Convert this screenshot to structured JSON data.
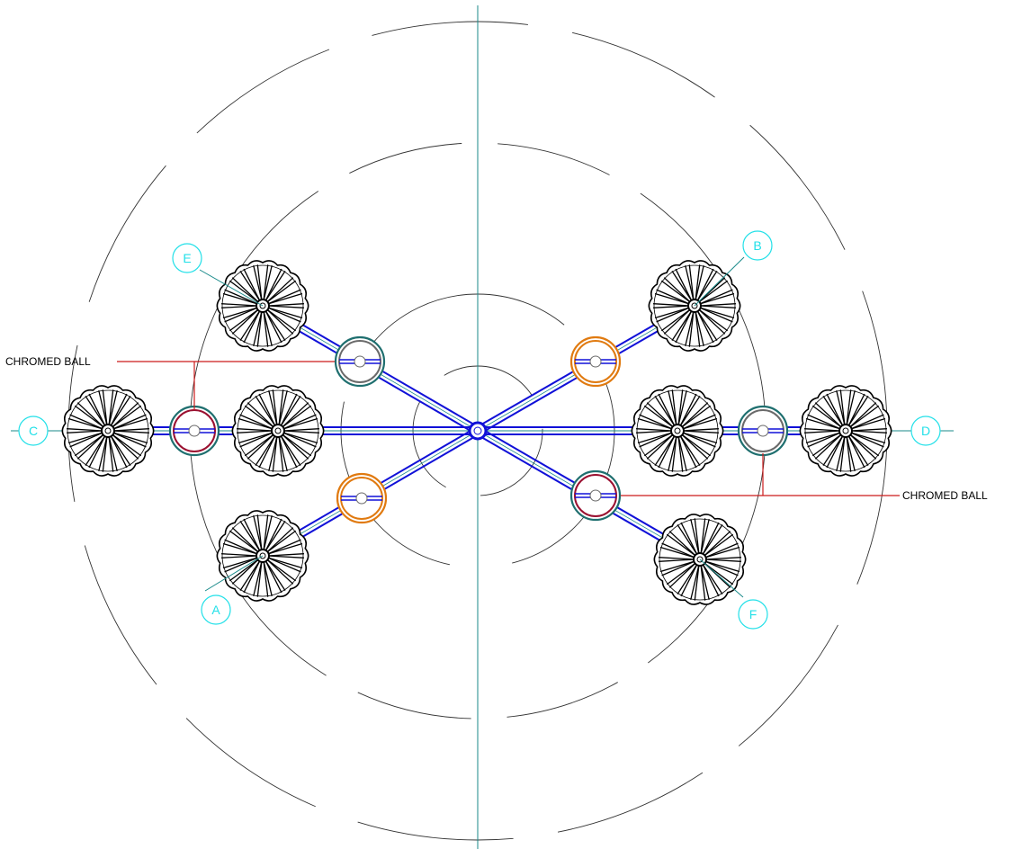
{
  "annotations": {
    "left": "CHROMED BALL",
    "right": "CHROMED BALL"
  },
  "markers": {
    "A": "A",
    "B": "B",
    "C": "C",
    "D": "D",
    "E": "E",
    "F": "F"
  },
  "colors": {
    "axis": "#1a8a8a",
    "arm": "#1010d8",
    "leader": "#cc1a1a",
    "bubble": "#22e0e8",
    "ring_teal": "#1f6f6f",
    "ring_orange": "#e07a10",
    "ring_maroon": "#9a1030",
    "ring_gray": "#6a6a6a",
    "head": "#000000",
    "guide": "#333333"
  }
}
